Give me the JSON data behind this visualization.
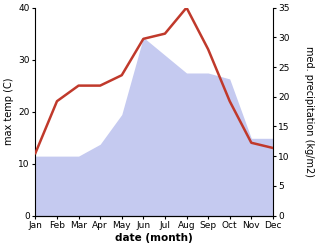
{
  "months": [
    "Jan",
    "Feb",
    "Mar",
    "Apr",
    "May",
    "Jun",
    "Jul",
    "Aug",
    "Sep",
    "Oct",
    "Nov",
    "Dec"
  ],
  "temp": [
    12,
    22,
    25,
    25,
    27,
    34,
    35,
    40,
    32,
    22,
    14,
    13
  ],
  "precip": [
    10,
    10,
    10,
    12,
    17,
    30,
    27,
    24,
    24,
    23,
    13,
    13
  ],
  "temp_color": "#c0392b",
  "precip_color": "#c5caf0",
  "ylim_temp": [
    0,
    40
  ],
  "ylim_precip": [
    0,
    35
  ],
  "yticks_temp": [
    0,
    10,
    20,
    30,
    40
  ],
  "yticks_precip": [
    0,
    5,
    10,
    15,
    20,
    25,
    30,
    35
  ],
  "ylabel_left": "max temp (C)",
  "ylabel_right": "med. precipitation (kg/m2)",
  "xlabel": "date (month)",
  "temp_linewidth": 1.8,
  "tick_fontsize": 6.5,
  "label_fontsize": 7,
  "xlabel_fontsize": 7.5
}
